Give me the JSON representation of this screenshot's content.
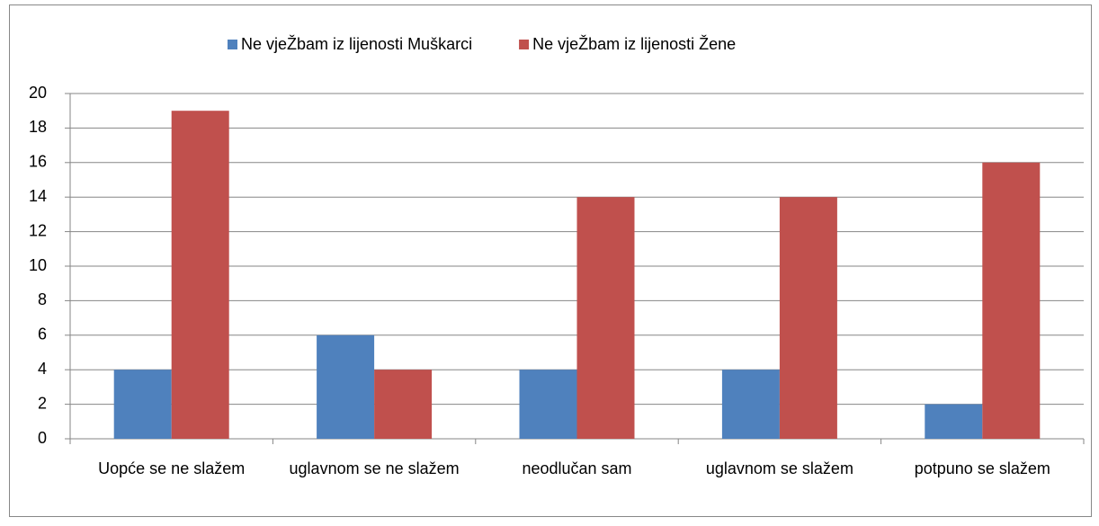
{
  "chart_data": {
    "type": "bar",
    "categories": [
      "Uopće se ne slažem",
      "uglavnom se ne slažem",
      "neodlučan sam",
      "uglavnom se slažem",
      "potpuno se slažem"
    ],
    "series": [
      {
        "name": "Ne vjeŽbam iz lijenosti Muškarci",
        "color": "#4f81bd",
        "values": [
          4,
          6,
          4,
          4,
          2
        ]
      },
      {
        "name": "Ne vjeŽbam iz lijenosti Žene",
        "color": "#c0504d",
        "values": [
          19,
          4,
          14,
          14,
          16
        ]
      }
    ],
    "ylim": [
      0,
      20
    ],
    "yticks": [
      0,
      2,
      4,
      6,
      8,
      10,
      12,
      14,
      16,
      18,
      20
    ],
    "grid": true,
    "legend": "top"
  }
}
